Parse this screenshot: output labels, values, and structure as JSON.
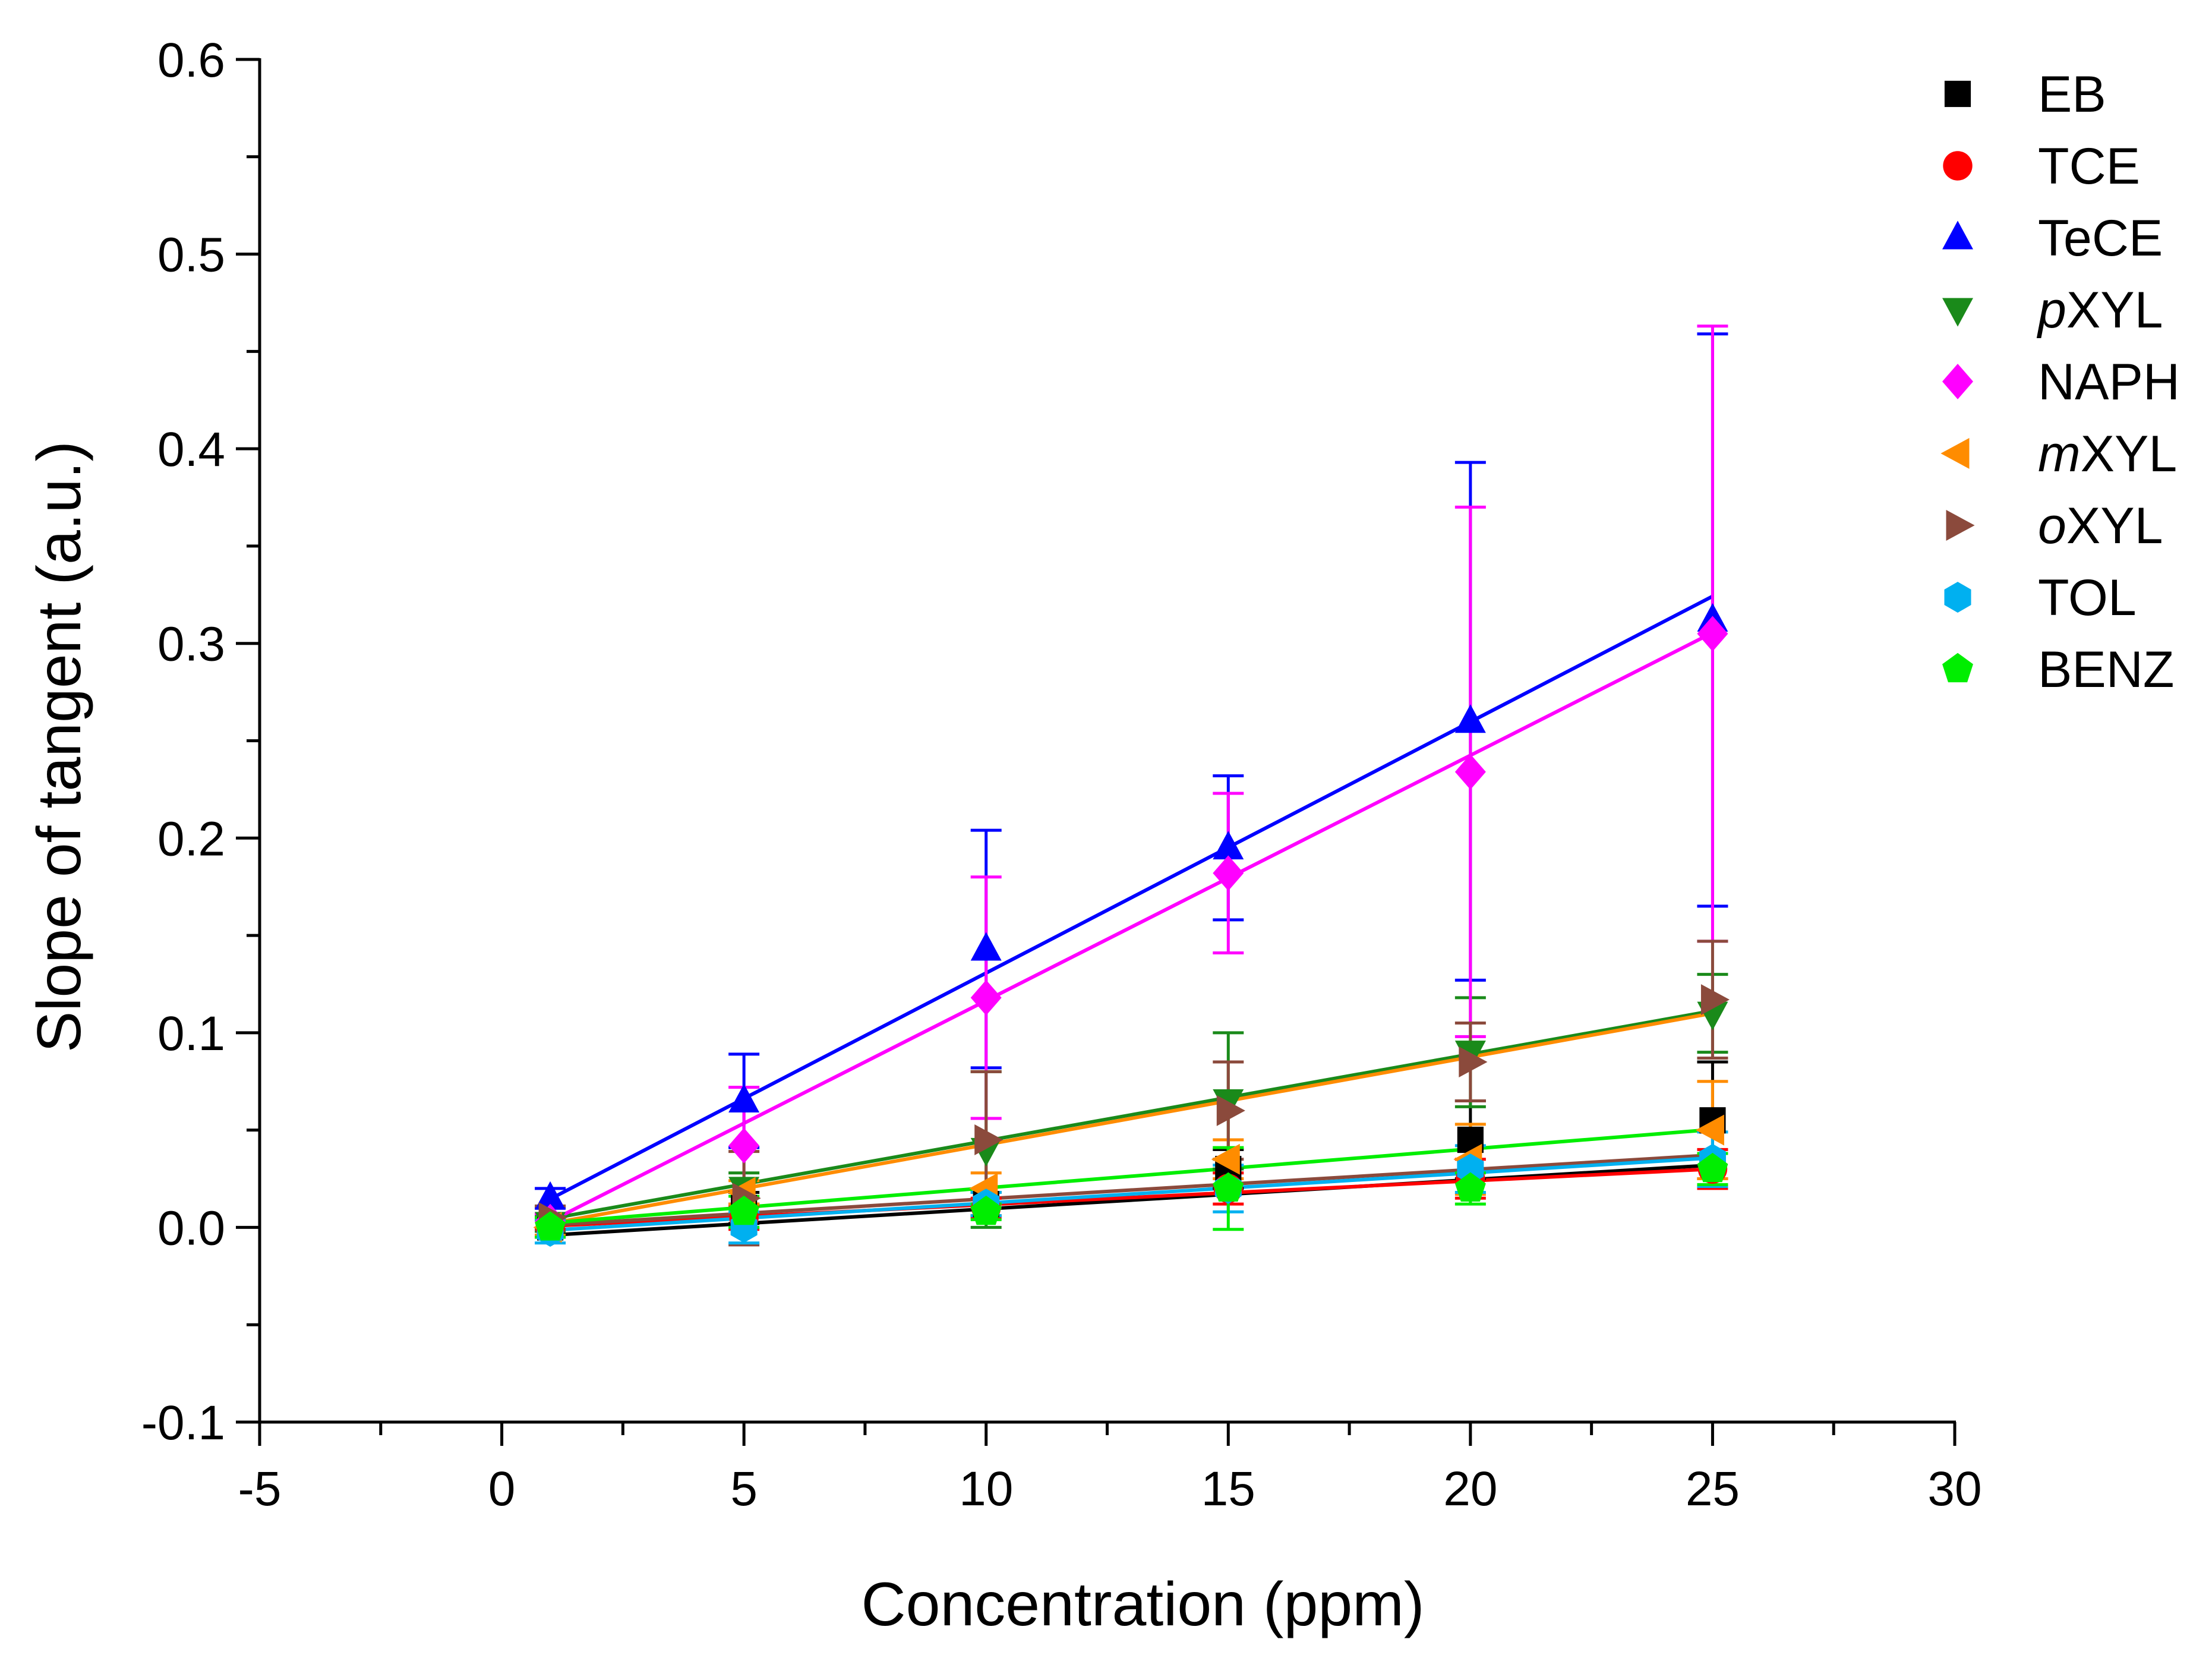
{
  "chart_data": {
    "type": "scatter",
    "title": "",
    "xlabel": "Concentration (ppm)",
    "ylabel": "Slope of tangent (a.u.)",
    "xlim": [
      -5,
      30
    ],
    "ylim": [
      -0.1,
      0.6
    ],
    "x_ticks": [
      {
        "value": -5,
        "label": "-5"
      },
      {
        "value": 0,
        "label": "0"
      },
      {
        "value": 5,
        "label": "5"
      },
      {
        "value": 10,
        "label": "10"
      },
      {
        "value": 15,
        "label": "15"
      },
      {
        "value": 20,
        "label": "20"
      },
      {
        "value": 25,
        "label": "25"
      },
      {
        "value": 30,
        "label": "30"
      }
    ],
    "y_ticks": [
      {
        "value": -0.1,
        "label": "-0.1"
      },
      {
        "value": 0.0,
        "label": "0.0"
      },
      {
        "value": 0.1,
        "label": "0.1"
      },
      {
        "value": 0.2,
        "label": "0.2"
      },
      {
        "value": 0.3,
        "label": "0.3"
      },
      {
        "value": 0.4,
        "label": "0.4"
      },
      {
        "value": 0.5,
        "label": "0.5"
      },
      {
        "value": 0.6,
        "label": "0.6"
      }
    ],
    "grid": false,
    "legend_position": "top-right",
    "x": [
      1,
      5,
      10,
      15,
      20,
      25
    ],
    "series": [
      {
        "name": "EB",
        "prefix": "",
        "suffix": "EB",
        "color": "#000000",
        "marker": "square",
        "values": [
          0.0,
          0.01,
          0.012,
          0.03,
          0.045,
          0.055
        ],
        "errors": [
          0.005,
          0.008,
          0.006,
          0.01,
          0.02,
          0.03
        ],
        "fit": {
          "intercept": -0.0055,
          "slope": 0.0015
        }
      },
      {
        "name": "TCE",
        "prefix": "",
        "suffix": "TCE",
        "color": "#ff0000",
        "marker": "circle",
        "values": [
          0.0,
          0.005,
          0.01,
          0.02,
          0.025,
          0.03
        ],
        "errors": [
          0.004,
          0.006,
          0.005,
          0.008,
          0.01,
          0.01
        ],
        "fit": {
          "intercept": -0.0005,
          "slope": 0.00122
        }
      },
      {
        "name": "TeCE",
        "prefix": "",
        "suffix": "TeCE",
        "color": "#0000ff",
        "marker": "triangle-up",
        "values": [
          0.015,
          0.065,
          0.143,
          0.195,
          0.26,
          0.312
        ],
        "errors": [
          0.005,
          0.024,
          0.061,
          0.037,
          0.133,
          0.147
        ],
        "fit": {
          "intercept": 0.0017,
          "slope": 0.0129
        }
      },
      {
        "name": "pXYL",
        "prefix": "p",
        "suffix": "XYL",
        "color": "#1a8a1a",
        "marker": "triangle-down",
        "values": [
          0.002,
          0.02,
          0.04,
          0.065,
          0.09,
          0.11
        ],
        "errors": [
          0.004,
          0.008,
          0.04,
          0.035,
          0.028,
          0.02
        ],
        "fit": {
          "intercept": 0.0,
          "slope": 0.00445
        }
      },
      {
        "name": "NAPH",
        "prefix": "",
        "suffix": "NAPH",
        "color": "#ff00ff",
        "marker": "diamond",
        "values": [
          0.003,
          0.042,
          0.118,
          0.182,
          0.234,
          0.305
        ],
        "errors": [
          0.004,
          0.03,
          0.062,
          0.041,
          0.136,
          0.158
        ],
        "fit": {
          "intercept": -0.0095,
          "slope": 0.0126
        }
      },
      {
        "name": "mXYL",
        "prefix": "m",
        "suffix": "XYL",
        "color": "#ff8c00",
        "marker": "triangle-left",
        "values": [
          0.0,
          0.018,
          0.02,
          0.035,
          0.035,
          0.05
        ],
        "errors": [
          0.004,
          0.006,
          0.008,
          0.01,
          0.018,
          0.025
        ],
        "fit": {
          "intercept": -0.0025,
          "slope": 0.0045
        }
      },
      {
        "name": "oXYL",
        "prefix": "o",
        "suffix": "XYL",
        "color": "#8b4a3c",
        "marker": "triangle-right",
        "values": [
          0.005,
          0.015,
          0.045,
          0.06,
          0.085,
          0.117
        ],
        "errors": [
          0.006,
          0.024,
          0.035,
          0.025,
          0.02,
          0.03
        ],
        "fit": {
          "intercept": -0.0003,
          "slope": 0.0015
        }
      },
      {
        "name": "TOL",
        "prefix": "",
        "suffix": "TOL",
        "color": "#00b0f0",
        "marker": "hexagon",
        "values": [
          -0.002,
          0.0,
          0.012,
          0.02,
          0.03,
          0.035
        ],
        "errors": [
          0.006,
          0.008,
          0.006,
          0.012,
          0.012,
          0.014
        ],
        "fit": {
          "intercept": -0.003,
          "slope": 0.00155
        }
      },
      {
        "name": "BENZ",
        "prefix": "",
        "suffix": "BENZ",
        "color": "#00ee00",
        "marker": "pentagon",
        "values": [
          0.0,
          0.008,
          0.008,
          0.02,
          0.02,
          0.03
        ],
        "errors": [
          0.005,
          0.008,
          0.004,
          0.021,
          0.008,
          0.008
        ],
        "fit": {
          "intercept": 0.0003,
          "slope": 0.002
        }
      }
    ]
  }
}
